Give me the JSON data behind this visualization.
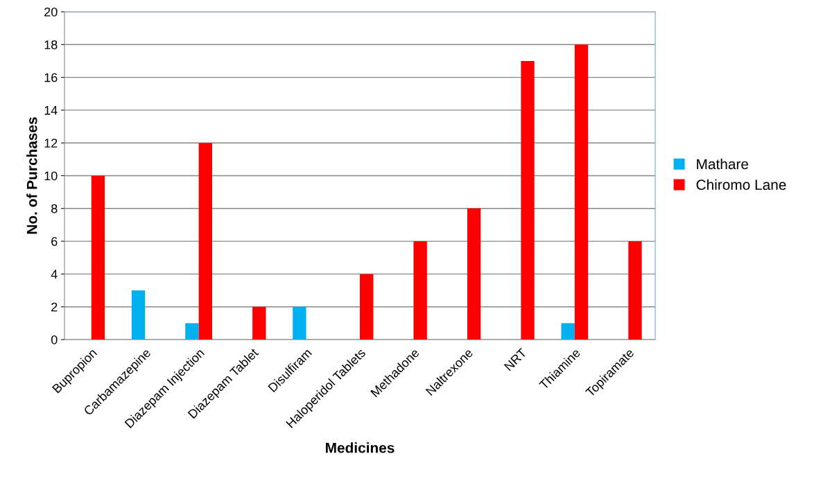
{
  "chart_data": {
    "type": "bar",
    "xlabel": "Medicines",
    "ylabel": "No. of Purchases",
    "categories": [
      "Bupropion",
      "Carbamazepine",
      "Diazepam Injection",
      "Diazepam Tablet",
      "Disulfiram",
      "Haloperidol Tablets",
      "Methadone",
      "Naltrexone",
      "NRT",
      "Thiamine",
      "Topiramate"
    ],
    "series": [
      {
        "name": "Mathare",
        "color": "#00b0f0",
        "values": [
          null,
          3,
          1,
          null,
          2,
          null,
          null,
          null,
          null,
          1,
          null
        ]
      },
      {
        "name": "Chiromo Lane",
        "color": "#ff0000",
        "values": [
          10,
          null,
          12,
          2,
          null,
          4,
          6,
          8,
          17,
          18,
          6
        ]
      }
    ],
    "ylim": [
      0,
      20
    ],
    "yticks": [
      0,
      2,
      4,
      6,
      8,
      10,
      12,
      14,
      16,
      18,
      20
    ],
    "grid": "y",
    "legend": "right"
  }
}
